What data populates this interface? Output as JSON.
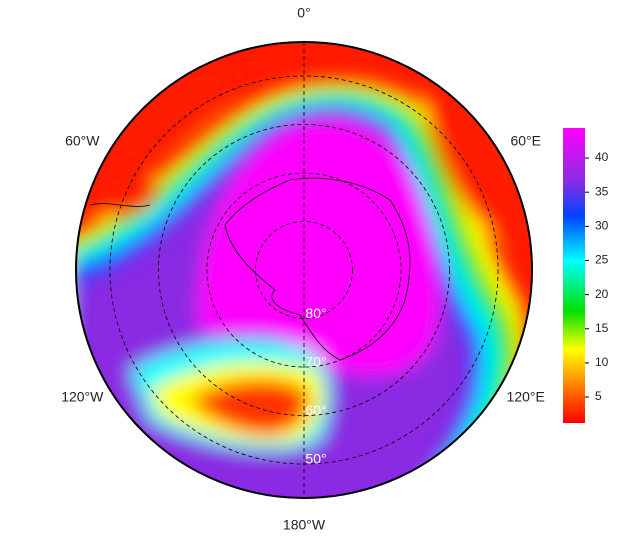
{
  "map": {
    "colorbar": {
      "lim": [
        1.2,
        44.4
      ],
      "ticks": [
        5,
        10,
        15,
        20,
        25,
        30,
        35,
        40
      ]
    },
    "latlim": [
      -90,
      -43
    ],
    "parallels": [
      {
        "value": -80,
        "label": "80°"
      },
      {
        "value": -70,
        "label": "70°"
      },
      {
        "value": -60,
        "label": "60°"
      },
      {
        "value": -50,
        "label": "50°"
      }
    ],
    "meridians": [
      {
        "value": 0,
        "label": "0°"
      },
      {
        "value": 60,
        "label": "60°E"
      },
      {
        "value": 120,
        "label": "120°E"
      },
      {
        "value": 180,
        "label": "180°W"
      },
      {
        "value": -120,
        "label": "120°W"
      },
      {
        "value": -60,
        "label": "60°W"
      }
    ]
  }
}
